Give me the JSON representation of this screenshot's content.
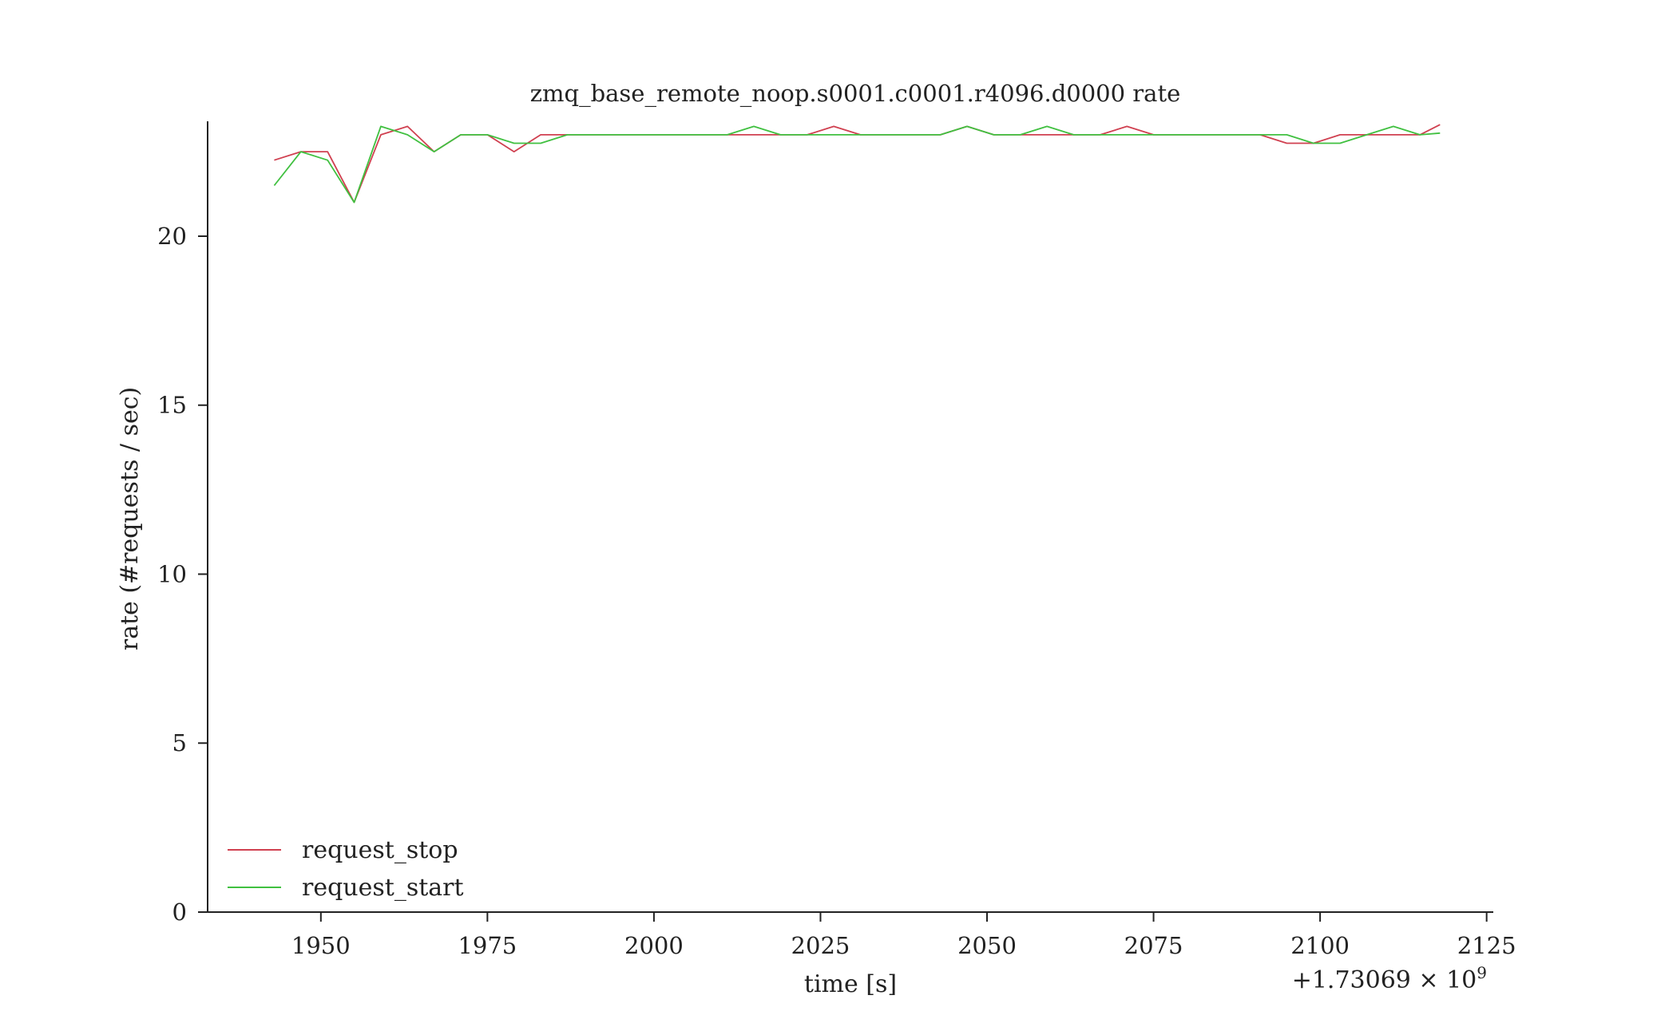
{
  "chart_data": {
    "type": "line",
    "title": "zmq_base_remote_noop.s0001.c0001.r4096.d0000 rate",
    "xlabel": "time [s]",
    "ylabel": "rate (#requests / sec)",
    "x_offset_label": "+1.73069 × 10",
    "x_offset_exponent": "9",
    "xlim": [
      1933,
      2126
    ],
    "ylim": [
      0,
      23.4
    ],
    "xticks": [
      1950,
      1975,
      2000,
      2025,
      2050,
      2075,
      2100,
      2125
    ],
    "xtick_labels": [
      "1950",
      "1975",
      "2000",
      "2025",
      "2050",
      "2075",
      "2100",
      "2125"
    ],
    "yticks": [
      0,
      5,
      10,
      15,
      20
    ],
    "ytick_labels": [
      "0",
      "5",
      "10",
      "15",
      "20"
    ],
    "grid": false,
    "legend_position": "lower-left",
    "x": [
      1943,
      1947,
      1951,
      1955,
      1959,
      1963,
      1967,
      1971,
      1975,
      1979,
      1983,
      1987,
      1991,
      1995,
      1999,
      2003,
      2007,
      2011,
      2015,
      2019,
      2023,
      2027,
      2031,
      2035,
      2039,
      2043,
      2047,
      2051,
      2055,
      2059,
      2063,
      2067,
      2071,
      2075,
      2079,
      2083,
      2087,
      2091,
      2095,
      2099,
      2103,
      2107,
      2111,
      2115,
      2118
    ],
    "series": [
      {
        "name": "request_stop",
        "color": "#d04050",
        "values": [
          22.25,
          22.5,
          22.5,
          21.0,
          23.0,
          23.25,
          22.5,
          23.0,
          23.0,
          22.5,
          23.0,
          23.0,
          23.0,
          23.0,
          23.0,
          23.0,
          23.0,
          23.0,
          23.0,
          23.0,
          23.0,
          23.25,
          23.0,
          23.0,
          23.0,
          23.0,
          23.25,
          23.0,
          23.0,
          23.0,
          23.0,
          23.0,
          23.25,
          23.0,
          23.0,
          23.0,
          23.0,
          23.0,
          22.75,
          22.75,
          23.0,
          23.0,
          23.0,
          23.0,
          23.3
        ]
      },
      {
        "name": "request_start",
        "color": "#40c040",
        "values": [
          21.5,
          22.5,
          22.25,
          21.0,
          23.25,
          23.0,
          22.5,
          23.0,
          23.0,
          22.75,
          22.75,
          23.0,
          23.0,
          23.0,
          23.0,
          23.0,
          23.0,
          23.0,
          23.25,
          23.0,
          23.0,
          23.0,
          23.0,
          23.0,
          23.0,
          23.0,
          23.25,
          23.0,
          23.0,
          23.25,
          23.0,
          23.0,
          23.0,
          23.0,
          23.0,
          23.0,
          23.0,
          23.0,
          23.0,
          22.75,
          22.75,
          23.0,
          23.25,
          23.0,
          23.05
        ]
      }
    ]
  }
}
